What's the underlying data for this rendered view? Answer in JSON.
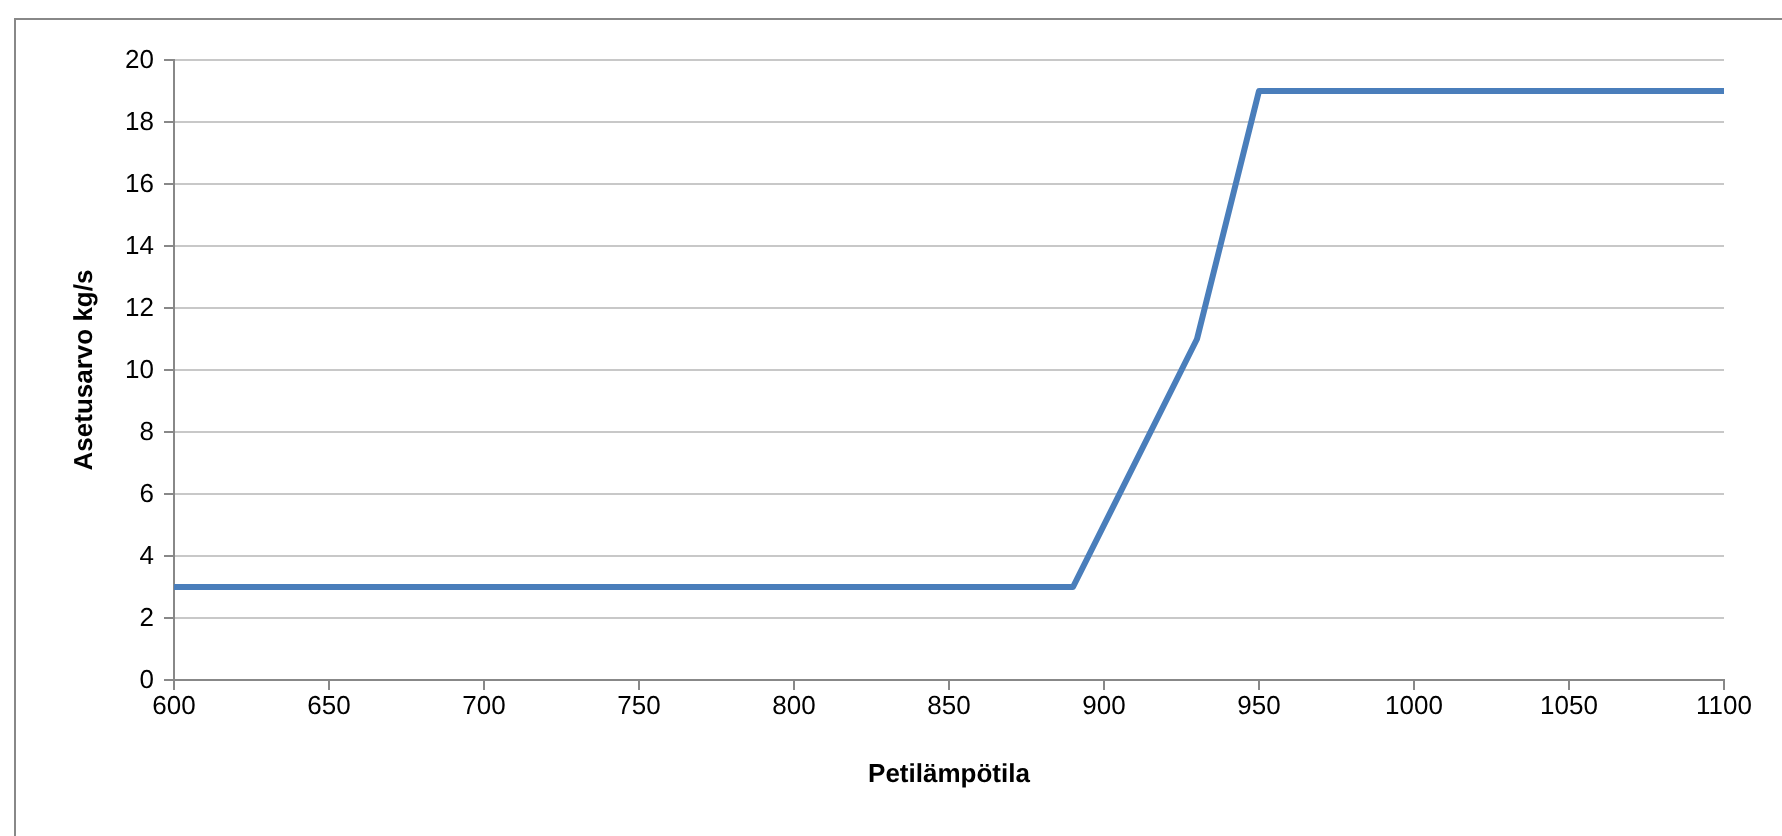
{
  "chart_data": {
    "type": "line",
    "xlabel": "Petilämpötila",
    "ylabel": "Asetusarvo kg/s",
    "x": [
      600,
      890,
      930,
      950,
      1100
    ],
    "series": [
      {
        "color": "#4a7ebb",
        "values": [
          3,
          3,
          11,
          19,
          19
        ]
      }
    ],
    "xlim": [
      600,
      1100
    ],
    "xticks": [
      600,
      650,
      700,
      750,
      800,
      850,
      900,
      950,
      1000,
      1050,
      1100
    ],
    "ylim": [
      0,
      20
    ],
    "yticks": [
      0,
      2,
      4,
      6,
      8,
      10,
      12,
      14,
      16,
      18,
      20
    ],
    "grid": "y",
    "marker": "none",
    "line_style": "solid"
  }
}
